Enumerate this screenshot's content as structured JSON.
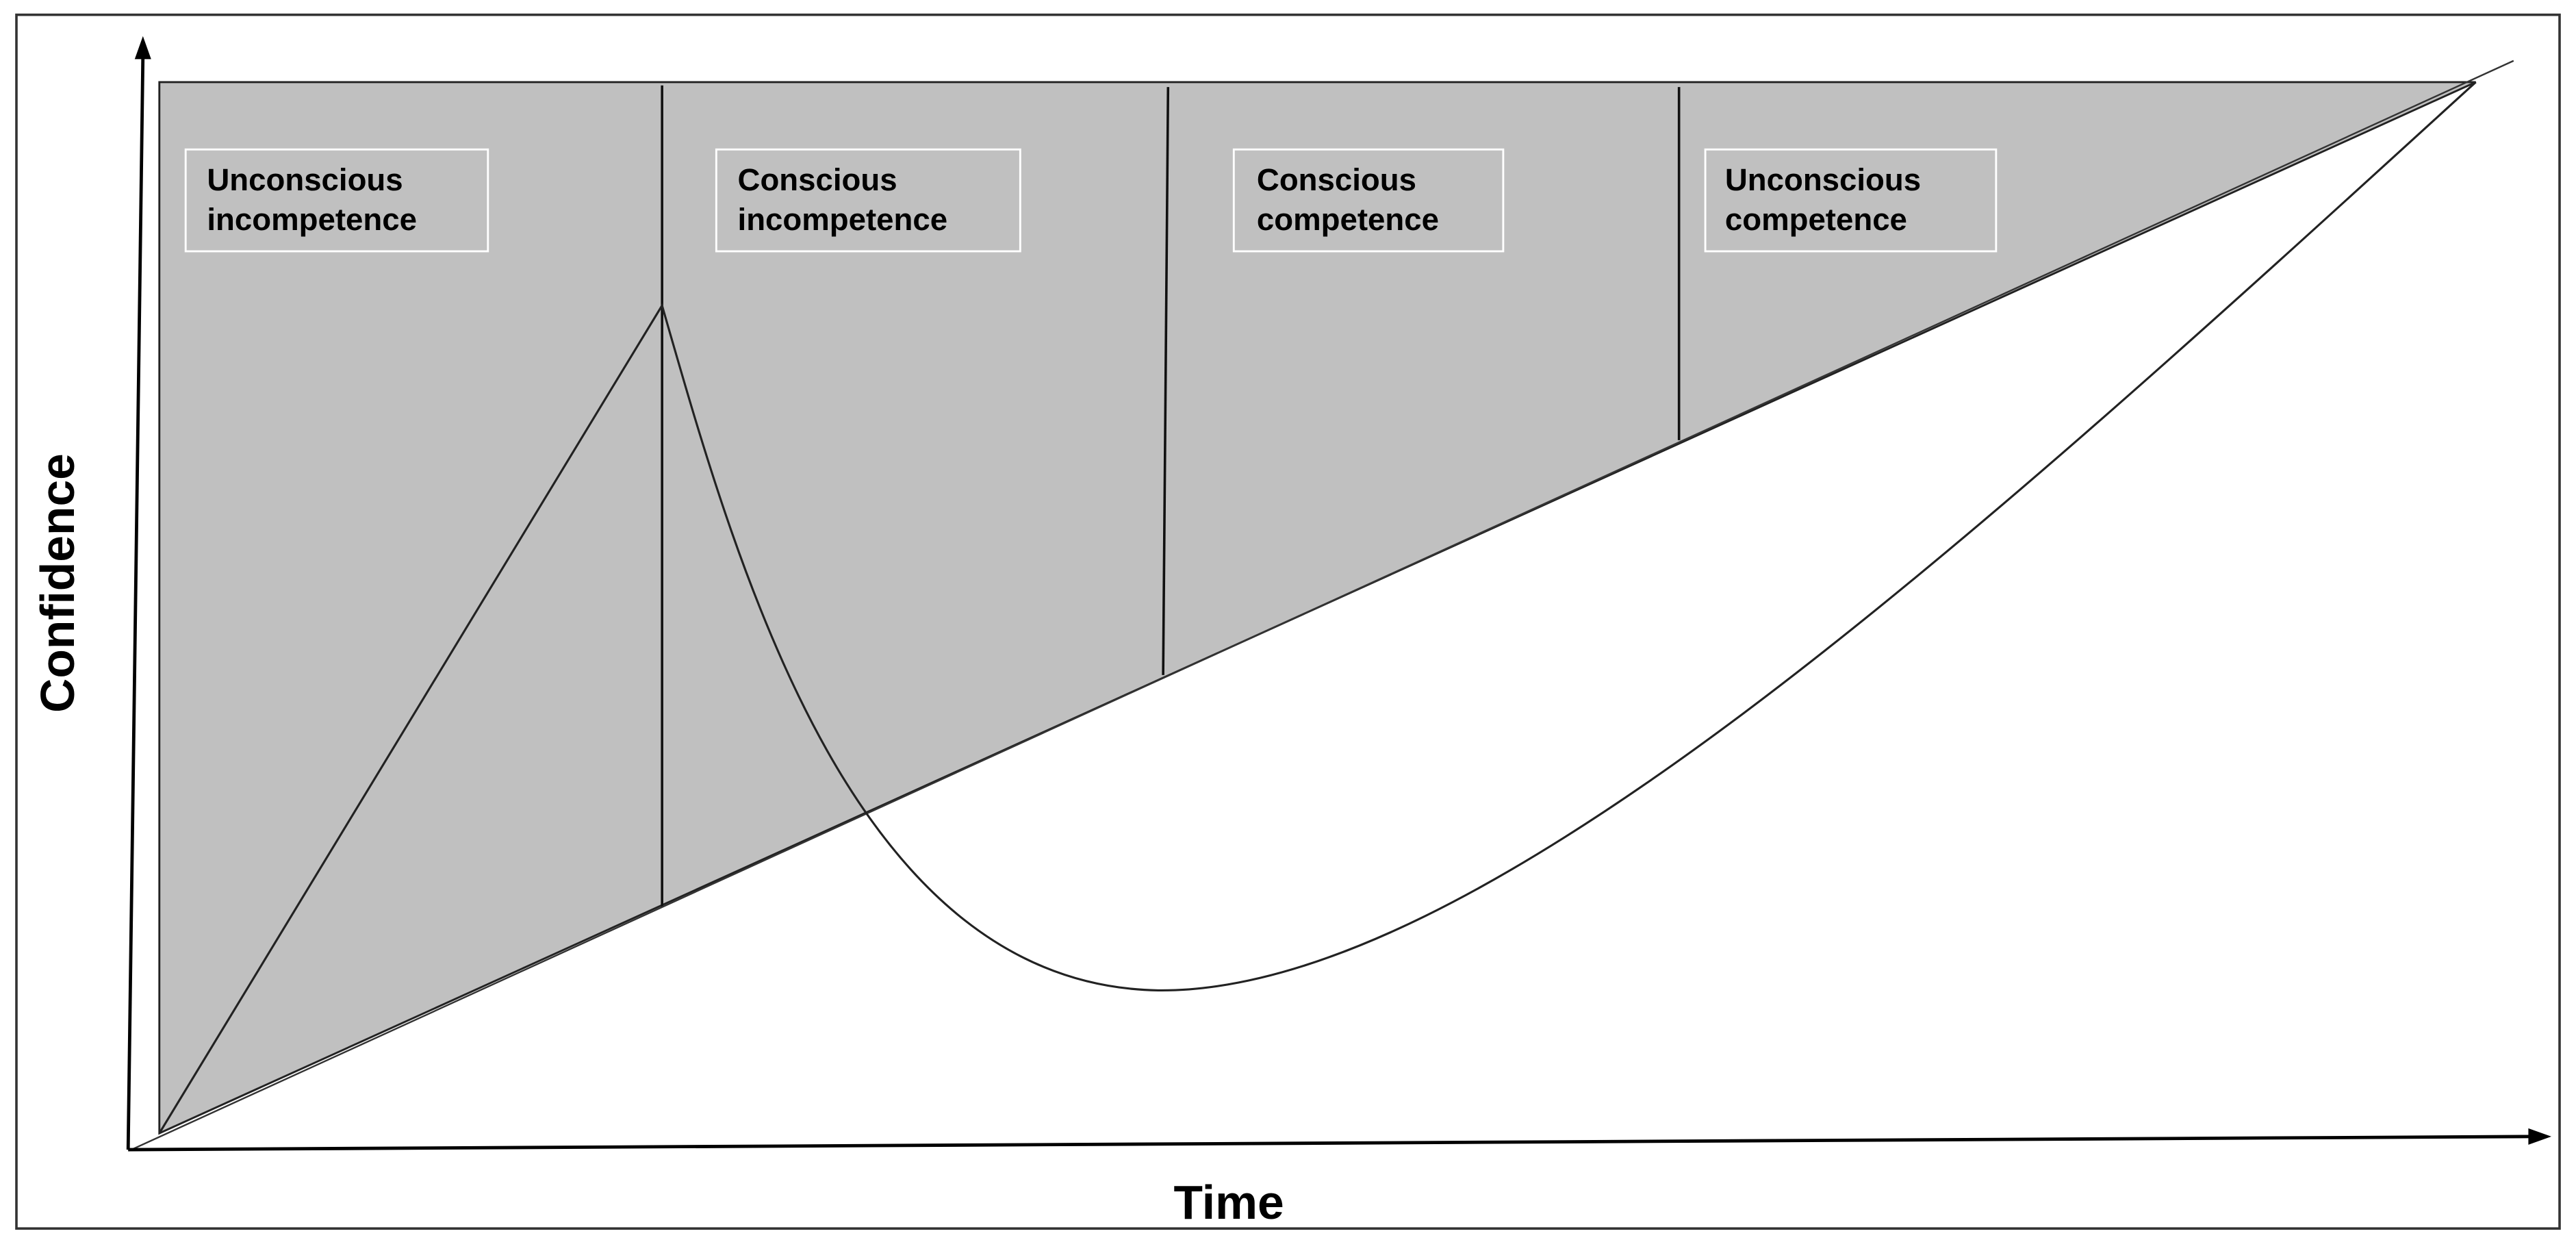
{
  "axes": {
    "y_label": "Confidence",
    "x_label": "Time"
  },
  "stages": [
    {
      "lines": [
        "Unconscious",
        "incompetence"
      ]
    },
    {
      "lines": [
        "Conscious",
        "incompetence"
      ]
    },
    {
      "lines": [
        "Conscious",
        "competence"
      ]
    },
    {
      "lines": [
        "Unconscious",
        "competence"
      ]
    }
  ]
}
